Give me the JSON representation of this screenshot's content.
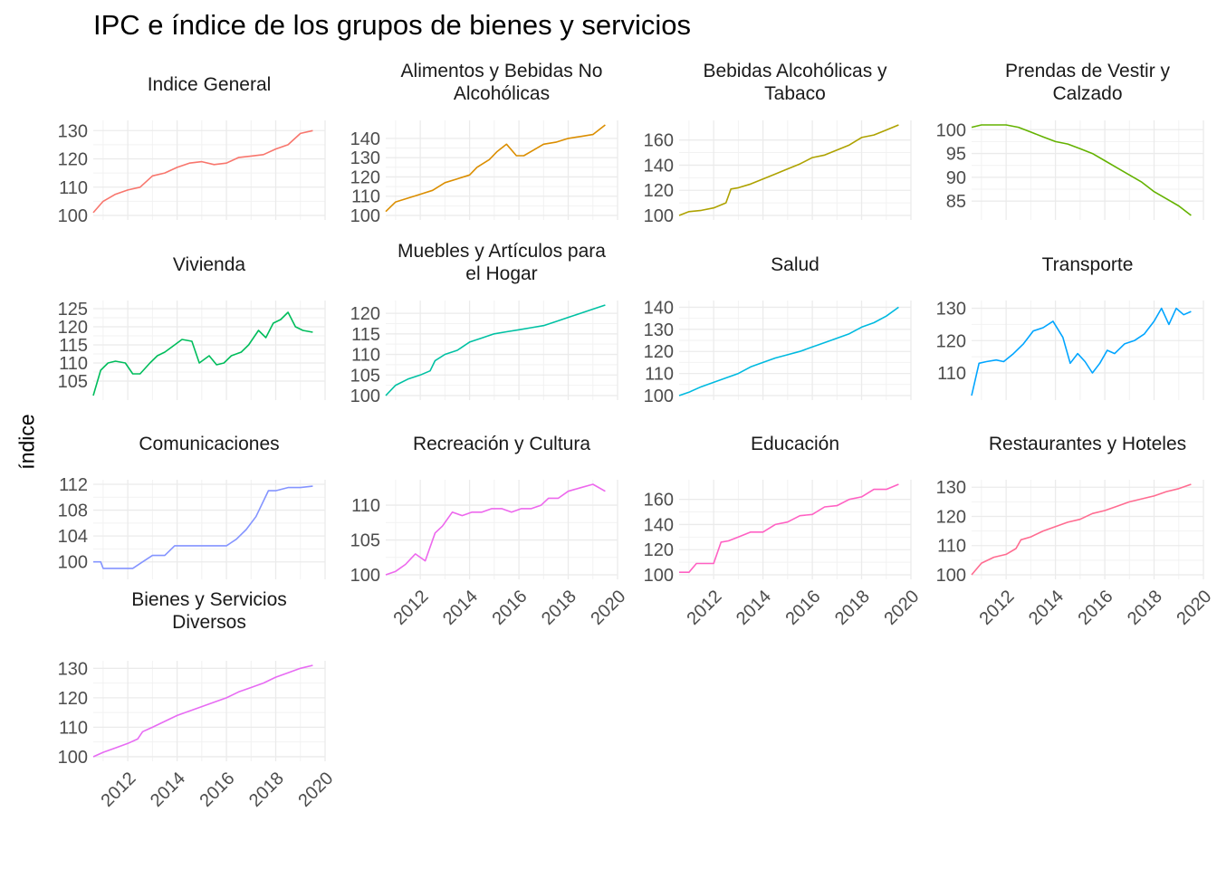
{
  "chart_data": {
    "type": "line",
    "title": "IPC e índice de los grupos de bienes y servicios",
    "ylabel": "índice",
    "xlabel": "",
    "x_ticks": [
      2012,
      2014,
      2016,
      2018,
      2020
    ],
    "xlim": [
      2010.6,
      2020.0
    ],
    "grid": true,
    "legend": "none",
    "panels": [
      {
        "name": "Indice General",
        "strip": [
          "Indice General"
        ],
        "color": "#F8766D",
        "ylim": [
          100,
          132
        ],
        "yticks": [
          100,
          110,
          120,
          130
        ],
        "x": [
          2010.6,
          2011.0,
          2011.5,
          2012.0,
          2012.5,
          2013.0,
          2013.5,
          2014.0,
          2014.5,
          2015.0,
          2015.5,
          2016.0,
          2016.5,
          2017.0,
          2017.5,
          2018.0,
          2018.5,
          2019.0,
          2019.5
        ],
        "values": [
          101,
          105,
          107.5,
          109,
          110,
          114,
          115,
          117,
          118.5,
          119,
          118,
          118.5,
          120.5,
          121,
          121.5,
          123.5,
          125,
          129,
          130
        ]
      },
      {
        "name": "Alimentos y Bebidas No Alcohólicas",
        "strip": [
          "Alimentos y Bebidas No",
          "Alcohólicas"
        ],
        "color": "#DB8E00",
        "ylim": [
          100,
          147
        ],
        "yticks": [
          100,
          110,
          120,
          130,
          140
        ],
        "x": [
          2010.6,
          2011.0,
          2011.5,
          2012.0,
          2012.5,
          2013.0,
          2013.5,
          2014.0,
          2014.3,
          2014.8,
          2015.1,
          2015.5,
          2015.9,
          2016.2,
          2016.6,
          2017.0,
          2017.5,
          2018.0,
          2018.5,
          2019.0,
          2019.5
        ],
        "values": [
          102,
          107,
          109,
          111,
          113,
          117,
          119,
          121,
          125,
          129,
          133,
          137,
          131,
          131,
          134,
          137,
          138,
          140,
          141,
          142,
          147
        ]
      },
      {
        "name": "Bebidas Alcohólicas y Tabaco",
        "strip": [
          "Bebidas Alcohólicas y",
          "Tabaco"
        ],
        "color": "#AEA200",
        "ylim": [
          100,
          172
        ],
        "yticks": [
          100,
          120,
          140,
          160
        ],
        "x": [
          2010.6,
          2011.0,
          2011.5,
          2012.0,
          2012.5,
          2012.7,
          2013.0,
          2013.5,
          2014.0,
          2014.5,
          2015.0,
          2015.5,
          2016.0,
          2016.5,
          2017.0,
          2017.5,
          2018.0,
          2018.5,
          2019.0,
          2019.5
        ],
        "values": [
          100,
          103,
          104,
          106,
          110,
          121,
          122,
          125,
          129,
          133,
          137,
          141,
          146,
          148,
          152,
          156,
          162,
          164,
          168,
          172
        ]
      },
      {
        "name": "Prendas de Vestir y Calzado",
        "strip": [
          "Prendas de Vestir y",
          "Calzado"
        ],
        "color": "#64B200",
        "ylim": [
          82,
          101
        ],
        "yticks": [
          85,
          90,
          95,
          100
        ],
        "x": [
          2010.6,
          2011.0,
          2011.5,
          2012.0,
          2012.5,
          2013.0,
          2013.5,
          2014.0,
          2014.5,
          2015.0,
          2015.5,
          2016.0,
          2016.5,
          2017.0,
          2017.5,
          2018.0,
          2018.5,
          2019.0,
          2019.5
        ],
        "values": [
          100.5,
          101,
          101,
          101,
          100.5,
          99.5,
          98.5,
          97.5,
          97,
          96,
          95,
          93.5,
          92,
          90.5,
          89,
          87,
          85.5,
          84,
          82
        ]
      },
      {
        "name": "Vivienda",
        "strip": [
          "Vivienda"
        ],
        "color": "#00BD5C",
        "ylim": [
          101,
          126
        ],
        "yticks": [
          105,
          110,
          115,
          120,
          125
        ],
        "x": [
          2010.6,
          2010.9,
          2011.2,
          2011.5,
          2011.9,
          2012.2,
          2012.5,
          2012.9,
          2013.2,
          2013.5,
          2013.9,
          2014.2,
          2014.6,
          2014.9,
          2015.3,
          2015.6,
          2015.9,
          2016.2,
          2016.6,
          2016.9,
          2017.3,
          2017.6,
          2017.9,
          2018.2,
          2018.5,
          2018.8,
          2019.1,
          2019.5
        ],
        "values": [
          101,
          108,
          110,
          110.5,
          110,
          107,
          107,
          110,
          112,
          113,
          115,
          116.5,
          116,
          110,
          112,
          109.5,
          110,
          112,
          113,
          115,
          119,
          117,
          121,
          122,
          124,
          120,
          119,
          118.5
        ]
      },
      {
        "name": "Muebles y Artículos para el Hogar",
        "strip": [
          "Muebles y Artículos para",
          "el Hogar"
        ],
        "color": "#00C1A3",
        "ylim": [
          100,
          122
        ],
        "yticks": [
          100,
          105,
          110,
          115,
          120
        ],
        "x": [
          2010.6,
          2011.0,
          2011.5,
          2012.0,
          2012.4,
          2012.6,
          2013.0,
          2013.5,
          2014.0,
          2014.5,
          2015.0,
          2015.5,
          2016.0,
          2016.5,
          2017.0,
          2017.5,
          2018.0,
          2018.5,
          2019.0,
          2019.5
        ],
        "values": [
          100,
          102.5,
          104,
          105,
          106,
          108.5,
          110,
          111,
          113,
          114,
          115,
          115.5,
          116,
          116.5,
          117,
          118,
          119,
          120,
          121,
          122
        ]
      },
      {
        "name": "Salud",
        "strip": [
          "Salud"
        ],
        "color": "#00BAE0",
        "ylim": [
          100,
          141
        ],
        "yticks": [
          100,
          110,
          120,
          130,
          140
        ],
        "x": [
          2010.6,
          2011.0,
          2011.5,
          2012.0,
          2012.5,
          2013.0,
          2013.5,
          2014.0,
          2014.5,
          2015.0,
          2015.5,
          2016.0,
          2016.5,
          2017.0,
          2017.5,
          2018.0,
          2018.5,
          2019.0,
          2019.5
        ],
        "values": [
          100,
          101.5,
          104,
          106,
          108,
          110,
          113,
          115,
          117,
          118.5,
          120,
          122,
          124,
          126,
          128,
          131,
          133,
          136,
          140
        ]
      },
      {
        "name": "Transporte",
        "strip": [
          "Transporte"
        ],
        "color": "#00A5FF",
        "ylim": [
          103,
          131
        ],
        "yticks": [
          110,
          120,
          130
        ],
        "x": [
          2010.6,
          2010.9,
          2011.2,
          2011.6,
          2011.9,
          2012.3,
          2012.7,
          2013.1,
          2013.5,
          2013.9,
          2014.3,
          2014.6,
          2014.9,
          2015.2,
          2015.5,
          2015.8,
          2016.1,
          2016.4,
          2016.8,
          2017.2,
          2017.6,
          2018.0,
          2018.3,
          2018.6,
          2018.9,
          2019.2,
          2019.5
        ],
        "values": [
          103,
          113,
          113.5,
          114,
          113.5,
          116,
          119,
          123,
          124,
          126,
          121,
          113,
          116,
          113.5,
          110,
          113,
          117,
          116,
          119,
          120,
          122,
          126,
          130,
          125,
          130,
          128,
          129
        ]
      },
      {
        "name": "Comunicaciones",
        "strip": [
          "Comunicaciones"
        ],
        "color": "#8494FF",
        "ylim": [
          98,
          112
        ],
        "yticks": [
          100,
          104,
          108,
          112
        ],
        "x": [
          2010.6,
          2010.9,
          2011.0,
          2011.8,
          2012.2,
          2012.6,
          2013.0,
          2013.5,
          2013.9,
          2014.5,
          2015.0,
          2015.5,
          2016.0,
          2016.4,
          2016.8,
          2017.2,
          2017.7,
          2018.0,
          2018.5,
          2019.0,
          2019.5
        ],
        "values": [
          100,
          100,
          99,
          99,
          99,
          100,
          101,
          101,
          102.5,
          102.5,
          102.5,
          102.5,
          102.5,
          103.5,
          105,
          107,
          111,
          111,
          111.5,
          111.5,
          111.7
        ]
      },
      {
        "name": "Recreación y Cultura",
        "strip": [
          "Recreación y Cultura"
        ],
        "color": "#ED68ED",
        "ylim": [
          100,
          113
        ],
        "yticks": [
          100,
          105,
          110
        ],
        "x": [
          2010.6,
          2011.0,
          2011.4,
          2011.8,
          2012.2,
          2012.6,
          2012.9,
          2013.3,
          2013.7,
          2014.1,
          2014.5,
          2014.9,
          2015.3,
          2015.7,
          2016.1,
          2016.5,
          2016.9,
          2017.2,
          2017.6,
          2018.0,
          2018.5,
          2019.0,
          2019.5
        ],
        "values": [
          100,
          100.5,
          101.5,
          103,
          102,
          106,
          107,
          109,
          108.5,
          109,
          109,
          109.5,
          109.5,
          109,
          109.5,
          109.5,
          110,
          111,
          111,
          112,
          112.5,
          113,
          112
        ]
      },
      {
        "name": "Educación",
        "strip": [
          "Educación"
        ],
        "color": "#FF61C3",
        "ylim": [
          100,
          172
        ],
        "yticks": [
          100,
          120,
          140,
          160
        ],
        "x": [
          2010.6,
          2011.0,
          2011.3,
          2012.0,
          2012.3,
          2012.6,
          2013.0,
          2013.5,
          2014.0,
          2014.5,
          2015.0,
          2015.5,
          2016.0,
          2016.5,
          2017.0,
          2017.5,
          2018.0,
          2018.5,
          2019.0,
          2019.5
        ],
        "values": [
          102,
          102,
          109,
          109,
          126,
          127,
          130,
          134,
          134,
          140,
          142,
          147,
          148,
          154,
          155,
          160,
          162,
          168,
          168,
          172
        ]
      },
      {
        "name": "Restaurantes y Hoteles",
        "strip": [
          "Restaurantes y Hoteles"
        ],
        "color": "#FF6C91",
        "ylim": [
          100,
          131
        ],
        "yticks": [
          100,
          110,
          120,
          130
        ],
        "x": [
          2010.6,
          2011.0,
          2011.5,
          2012.0,
          2012.4,
          2012.6,
          2013.0,
          2013.5,
          2014.0,
          2014.5,
          2015.0,
          2015.5,
          2016.0,
          2016.5,
          2017.0,
          2017.5,
          2018.0,
          2018.5,
          2019.0,
          2019.5
        ],
        "values": [
          100,
          104,
          106,
          107,
          109,
          112,
          113,
          115,
          116.5,
          118,
          119,
          121,
          122,
          123.5,
          125,
          126,
          127,
          128.5,
          129.5,
          131
        ]
      },
      {
        "name": "Bienes y Servicios Diversos",
        "strip": [
          "Bienes y Servicios",
          "Diversos"
        ],
        "color": "#E76BF3",
        "ylim": [
          100,
          131
        ],
        "yticks": [
          100,
          110,
          120,
          130
        ],
        "x": [
          2010.6,
          2011.0,
          2011.5,
          2012.0,
          2012.4,
          2012.6,
          2013.0,
          2013.5,
          2014.0,
          2014.5,
          2015.0,
          2015.5,
          2016.0,
          2016.5,
          2017.0,
          2017.5,
          2018.0,
          2018.5,
          2019.0,
          2019.5
        ],
        "values": [
          100,
          101.5,
          103,
          104.5,
          106,
          108.5,
          110,
          112,
          114,
          115.5,
          117,
          118.5,
          120,
          122,
          123.5,
          125,
          127,
          128.5,
          130,
          131
        ]
      }
    ]
  }
}
